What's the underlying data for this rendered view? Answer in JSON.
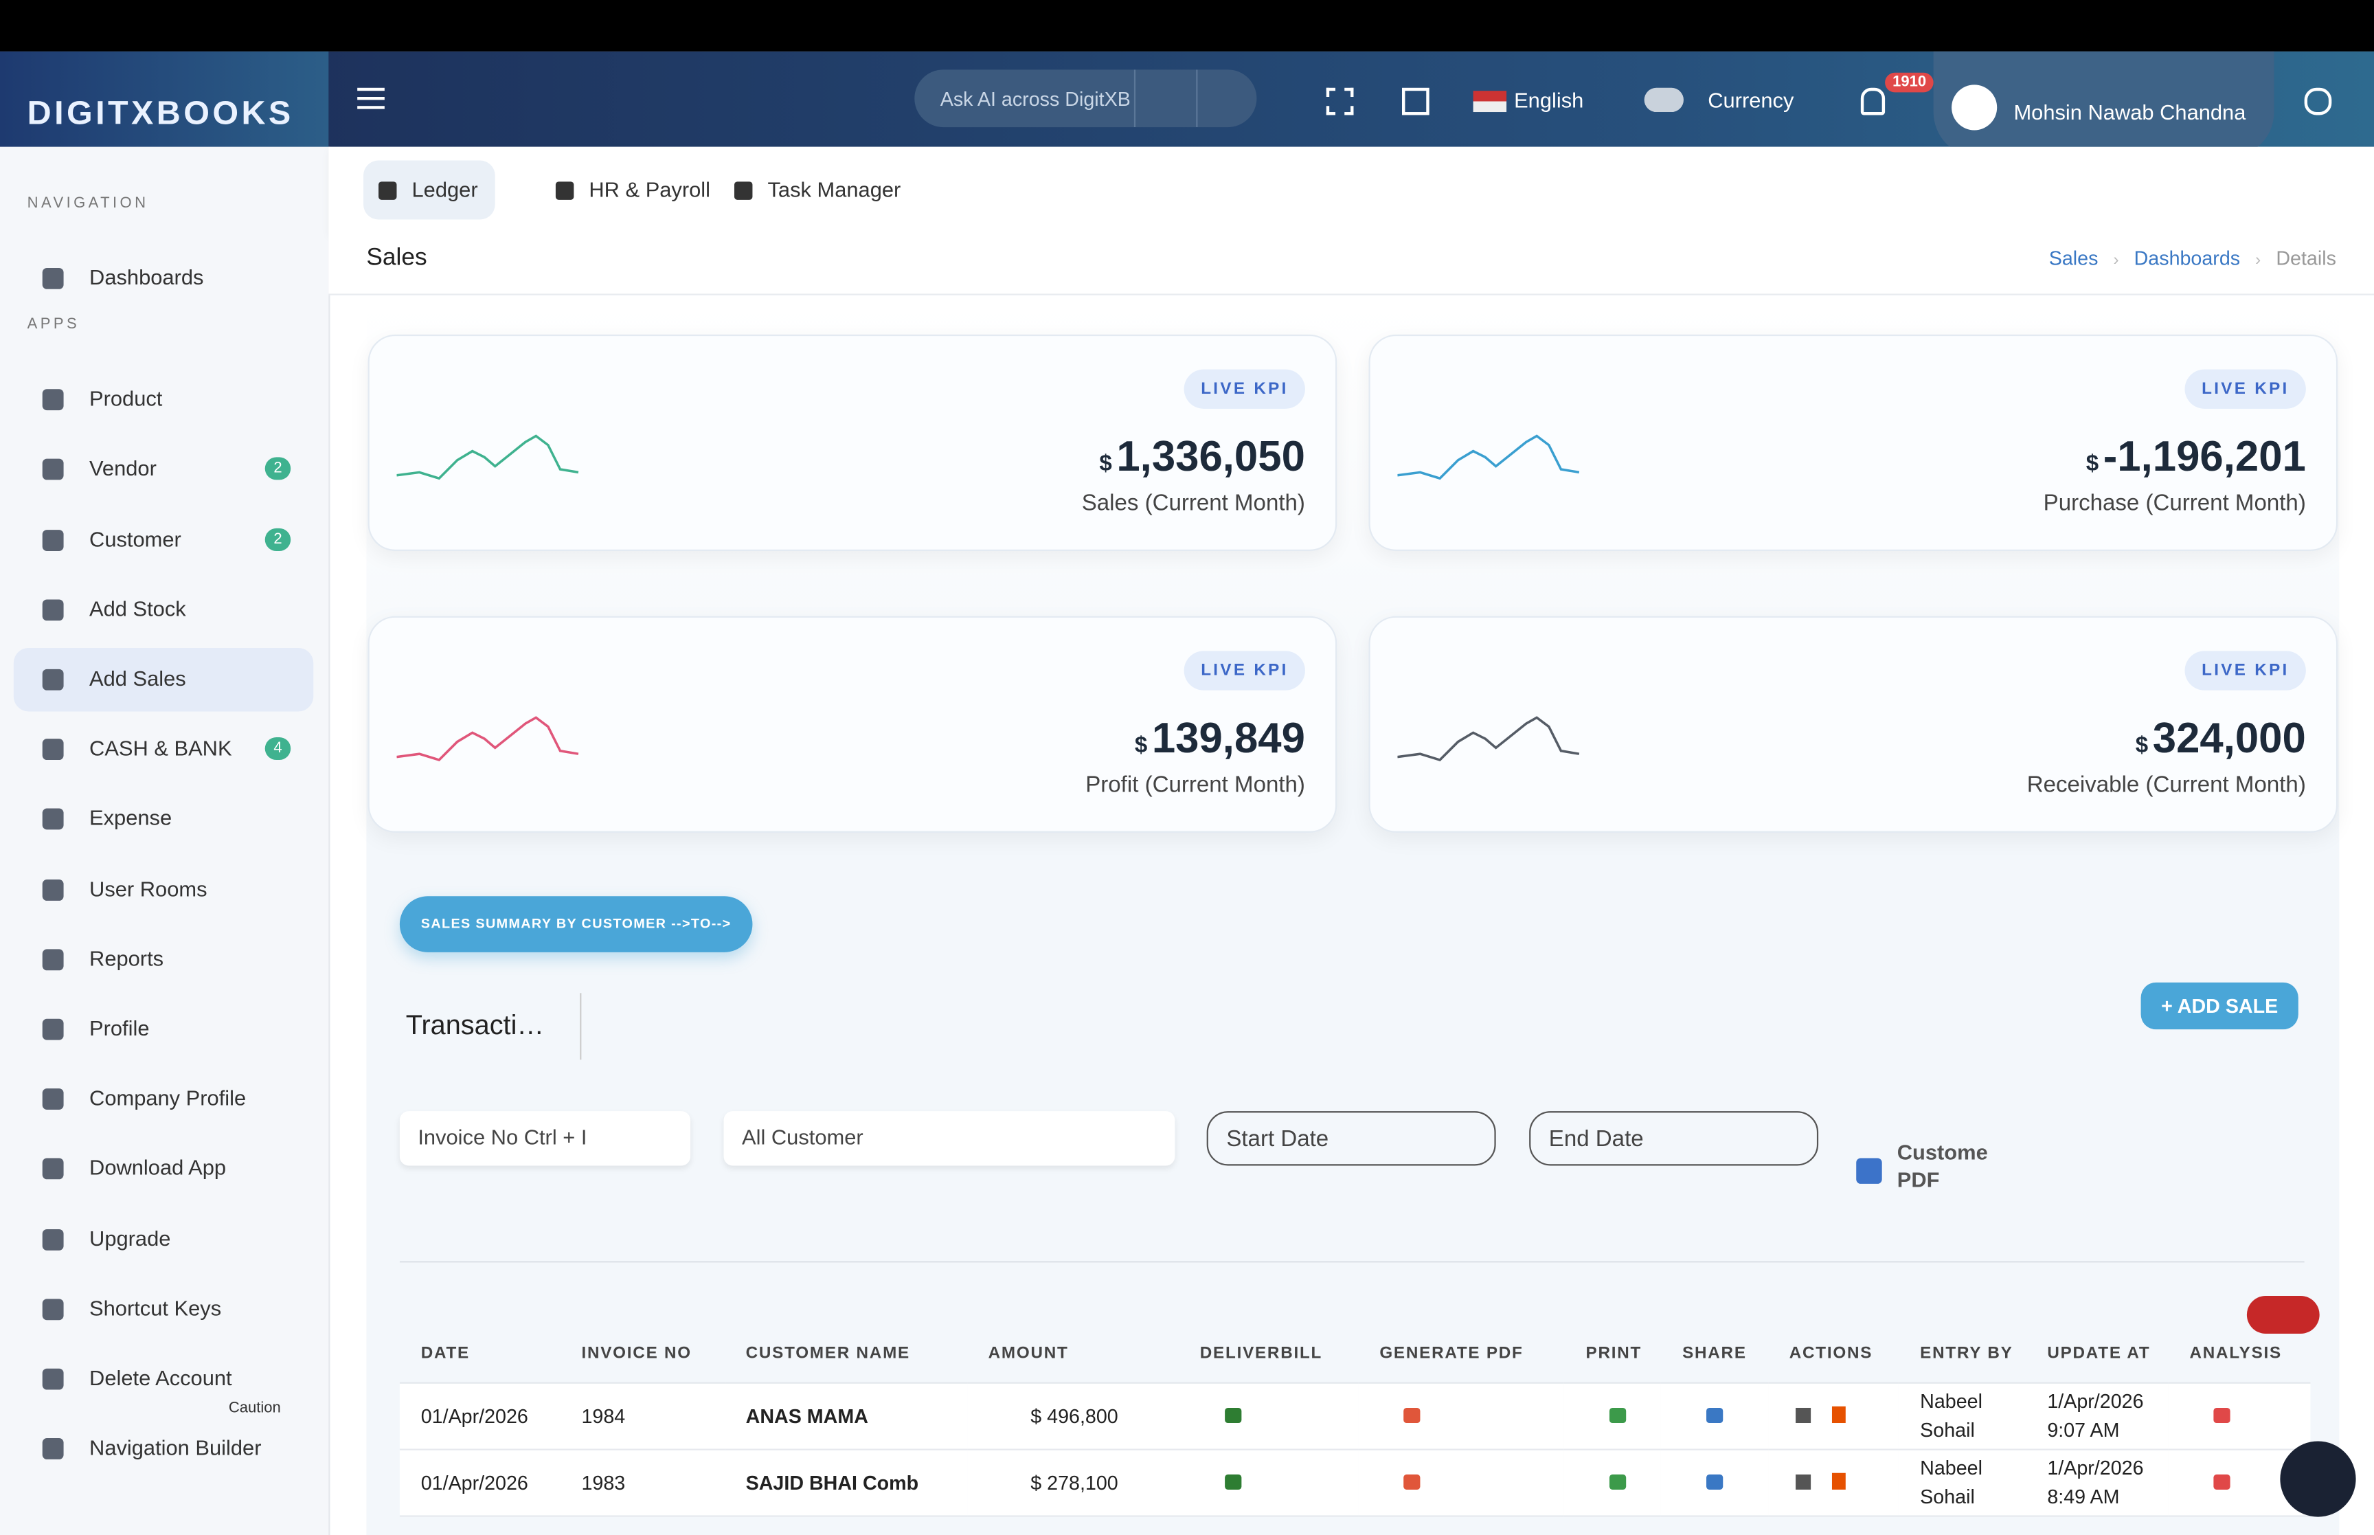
{
  "header": {
    "brand": "DIGITXBOOKS",
    "search_placeholder": "Ask AI across DigitXBooks",
    "language": "English",
    "currency": "Currency",
    "notifications": "1910",
    "user": "Mohsin Nawab Chandna"
  },
  "sidebar": {
    "sections": [
      {
        "title": "NAVIGATION",
        "items": [
          {
            "label": "Dashboards"
          }
        ]
      },
      {
        "title": "APPS",
        "items": [
          {
            "label": "Product"
          },
          {
            "label": "Vendor",
            "badge": "2"
          },
          {
            "label": "Customer",
            "badge": "2"
          },
          {
            "label": "Add Stock"
          },
          {
            "label": "Add Sales"
          },
          {
            "label": "CASH & BANK",
            "badge": "4"
          },
          {
            "label": "Expense"
          },
          {
            "label": "User Rooms"
          },
          {
            "label": "Reports"
          },
          {
            "label": "Profile"
          },
          {
            "label": "Company Profile"
          },
          {
            "label": "Download App"
          },
          {
            "label": "Upgrade"
          },
          {
            "label": "Shortcut Keys"
          },
          {
            "label": "Delete Account",
            "note": "Caution"
          },
          {
            "label": "Navigation Builder"
          }
        ]
      }
    ]
  },
  "tabs": [
    "Ledger",
    "HR & Payroll",
    "Task Manager"
  ],
  "page": {
    "title": "Sales",
    "breadcrumb": [
      "Sales",
      "Dashboards",
      "Details"
    ]
  },
  "kpis": [
    {
      "badge": "LIVE KPI",
      "currency": "$",
      "value": "1,336,050",
      "label": "Sales (Current Month)",
      "color": "#3fb28f"
    },
    {
      "badge": "LIVE KPI",
      "currency": "$",
      "value": "-1,196,201",
      "label": "Purchase (Current Month)",
      "color": "#3a9fd0"
    },
    {
      "badge": "LIVE KPI",
      "currency": "$",
      "value": "139,849",
      "label": "Profit (Current Month)",
      "color": "#e0567a"
    },
    {
      "badge": "LIVE KPI",
      "currency": "$",
      "value": "324,000",
      "label": "Receivable (Current Month)",
      "color": "#555c66"
    }
  ],
  "summary_button": "SALES SUMMARY BY CUSTOMER -->TO-->",
  "section_title": "Transacti…",
  "add_button": "+ ADD SALE",
  "filters": {
    "invoice": "Invoice No Ctrl + I",
    "customer": "All Customer",
    "start": "Start Date",
    "end": "End Date",
    "checkbox": "Custome PDF"
  },
  "table": {
    "columns": [
      "DATE",
      "INVOICE NO",
      "CUSTOMER NAME",
      "AMOUNT",
      "DELIVERBILL",
      "GENERATE PDF",
      "PRINT",
      "SHARE",
      "ACTIONS",
      "ENTRY BY",
      "UPDATE AT",
      "ANALYSIS"
    ],
    "rows": [
      [
        "01/Apr/2026",
        "1984",
        "ANAS MAMA",
        "$ 496,800",
        "Nabeel Sohail",
        "1/Apr/2026 9:07 AM"
      ],
      [
        "01/Apr/2026",
        "1983",
        "SAJID BHAI Comb",
        "$ 278,100",
        "Nabeel Sohail",
        "1/Apr/2026 8:49 AM"
      ]
    ]
  }
}
